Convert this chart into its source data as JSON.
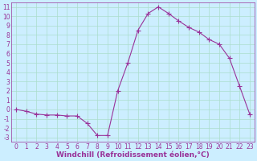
{
  "x": [
    0,
    1,
    2,
    3,
    4,
    5,
    6,
    7,
    8,
    9,
    10,
    11,
    12,
    13,
    14,
    15,
    16,
    17,
    18,
    19,
    20,
    21,
    22,
    23
  ],
  "y": [
    0.0,
    -0.2,
    -0.5,
    -0.6,
    -0.6,
    -0.7,
    -0.7,
    -1.5,
    -2.8,
    -2.8,
    2.0,
    5.0,
    8.5,
    10.3,
    11.0,
    10.3,
    9.5,
    8.8,
    8.3,
    7.5,
    7.0,
    5.5,
    2.5,
    -0.5
  ],
  "ylim": [
    -3.5,
    11.5
  ],
  "xlim": [
    -0.5,
    23.5
  ],
  "yticks": [
    -3,
    -2,
    -1,
    0,
    1,
    2,
    3,
    4,
    5,
    6,
    7,
    8,
    9,
    10,
    11
  ],
  "xticks": [
    0,
    1,
    2,
    3,
    4,
    5,
    6,
    7,
    8,
    9,
    10,
    11,
    12,
    13,
    14,
    15,
    16,
    17,
    18,
    19,
    20,
    21,
    22,
    23
  ],
  "line_color": "#993399",
  "marker": "+",
  "marker_size": 4.0,
  "line_width": 0.8,
  "bg_color": "#cceeff",
  "grid_color": "#aaddcc",
  "xlabel": "Windchill (Refroidissement éolien,°C)",
  "xlabel_fontsize": 6.5,
  "tick_fontsize": 5.5,
  "title": ""
}
